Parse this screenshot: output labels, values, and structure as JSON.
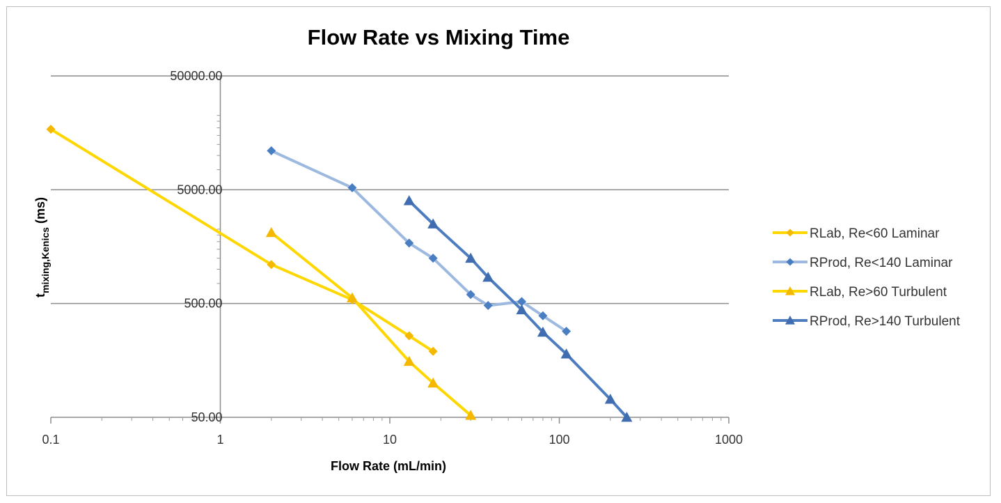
{
  "chart_data": {
    "type": "line",
    "title": "Flow Rate vs Mixing Time",
    "xlabel": "Flow Rate (mL/min)",
    "ylabel_main": "t",
    "ylabel_sub": "mixing,Kenics",
    "ylabel_unit": " (ms)",
    "x_scale": "log",
    "y_scale": "log",
    "xlim": [
      0.1,
      1000
    ],
    "ylim": [
      50,
      50000
    ],
    "x_ticks": [
      {
        "value": 0.1,
        "label": "0.1"
      },
      {
        "value": 1,
        "label": "1"
      },
      {
        "value": 10,
        "label": "10"
      },
      {
        "value": 100,
        "label": "100"
      },
      {
        "value": 1000,
        "label": "1000"
      }
    ],
    "y_ticks": [
      {
        "value": 50,
        "label": "50.00"
      },
      {
        "value": 500,
        "label": "500.00"
      },
      {
        "value": 5000,
        "label": "5000.00"
      },
      {
        "value": 50000,
        "label": "50000.00"
      }
    ],
    "legend_position": "right",
    "series": [
      {
        "name": "RLab, Re<60 Laminar",
        "color": "#FFD700",
        "marker": "diamond",
        "marker_color": "#F5B800",
        "x": [
          0.1,
          2,
          6,
          13,
          18
        ],
        "y": [
          17000,
          1100,
          540,
          260,
          190
        ]
      },
      {
        "name": "RProd, Re<140 Laminar",
        "color": "#9DB9DF",
        "marker": "diamond",
        "marker_color": "#4A7EC2",
        "x": [
          2,
          6,
          13,
          18,
          30,
          38,
          60,
          80,
          110
        ],
        "y": [
          11000,
          5200,
          1700,
          1250,
          600,
          480,
          520,
          390,
          285
        ]
      },
      {
        "name": "RLab, Re>60 Turbulent",
        "color": "#FFD700",
        "marker": "triangle",
        "marker_color": "#F5B800",
        "x": [
          2,
          6,
          13,
          18,
          30
        ],
        "y": [
          2100,
          560,
          155,
          100,
          52
        ]
      },
      {
        "name": "RProd, Re>140 Turbulent",
        "color": "#4E7DBF",
        "marker": "triangle",
        "marker_color": "#3F6DB0",
        "x": [
          13,
          18,
          30,
          38,
          60,
          80,
          110,
          200,
          250
        ],
        "y": [
          4000,
          2500,
          1250,
          850,
          440,
          280,
          180,
          72,
          50
        ]
      }
    ]
  }
}
